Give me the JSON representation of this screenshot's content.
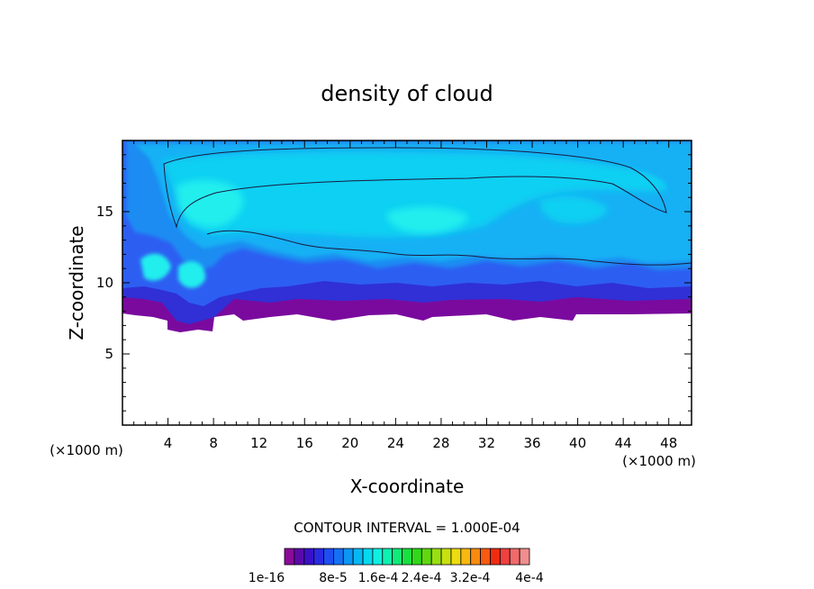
{
  "chart_data": {
    "type": "heatmap",
    "title": "density of cloud",
    "xlabel": "X-coordinate",
    "ylabel": "Z-coordinate",
    "x_unit": "(×1000 m)",
    "y_unit": "(×1000 m)",
    "xlim": [
      0,
      50
    ],
    "ylim": [
      0,
      20
    ],
    "x_ticks": [
      4,
      8,
      12,
      16,
      20,
      24,
      28,
      32,
      36,
      40,
      44,
      48
    ],
    "y_ticks": [
      5,
      10,
      15
    ],
    "contour_interval_text": "CONTOUR INTERVAL = 1.000E-04",
    "colorbar": {
      "labels": [
        "1e-16",
        "8e-5",
        "1.6e-4",
        "2.4e-4",
        "3.2e-4",
        "4e-4"
      ],
      "colors": [
        "#8a0a9a",
        "#5a0aa8",
        "#3a10c8",
        "#2a2ae0",
        "#1e4ef0",
        "#1670f5",
        "#0c96f5",
        "#06b8f2",
        "#06d8ee",
        "#10f0e0",
        "#10f0b0",
        "#10ea7a",
        "#18e040",
        "#30d818",
        "#60d810",
        "#98e010",
        "#c8e010",
        "#eedc10",
        "#f8b810",
        "#f88a10",
        "#f85a10",
        "#f02c10",
        "#f04040",
        "#f06a6a",
        "#f08e8e"
      ]
    },
    "field_colors": {
      "violet": "#7a0a9e",
      "deep_blue": "#3030d6",
      "royal_blue": "#2d5ef2",
      "mid_blue": "#1c8cf2",
      "light_blue": "#16b0f4",
      "sky": "#0ed0f2",
      "cyan": "#22eeee"
    }
  }
}
